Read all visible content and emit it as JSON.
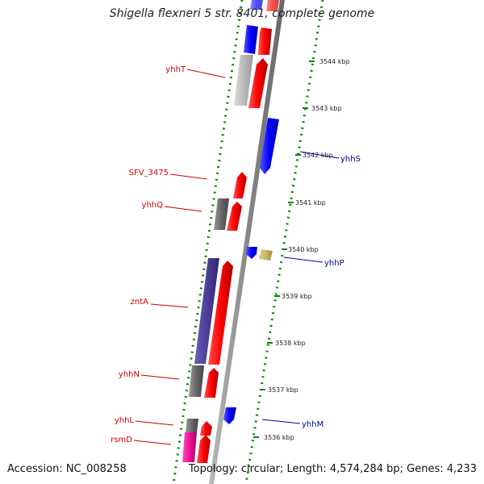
{
  "title": "Shigella flexneri 5 str. 8401, complete genome",
  "accession": "Accession: NC_008258",
  "topology": "Topology: circular; Length: 4,574,284 bp; Genes: 4,233",
  "ticks": [
    {
      "label": "3544 kbp"
    },
    {
      "label": "3543 kbp"
    },
    {
      "label": "3542 kbp"
    },
    {
      "label": "3541 kbp"
    },
    {
      "label": "3540 kbp"
    },
    {
      "label": "3539 kbp"
    },
    {
      "label": "3538 kbp"
    },
    {
      "label": "3537 kbp"
    },
    {
      "label": "3536 kbp"
    }
  ],
  "gene_labels": [
    {
      "name": "yhhT",
      "color": "#cc0000"
    },
    {
      "name": "SFV_3475",
      "color": "#cc0000"
    },
    {
      "name": "yhhQ",
      "color": "#cc0000"
    },
    {
      "name": "zntA",
      "color": "#cc0000"
    },
    {
      "name": "yhhN",
      "color": "#cc0000"
    },
    {
      "name": "yhhL",
      "color": "#cc0000"
    },
    {
      "name": "rsmD",
      "color": "#cc0000"
    },
    {
      "name": "yhhS",
      "color": "#000099"
    },
    {
      "name": "yhhP",
      "color": "#000099"
    },
    {
      "name": "yhhM",
      "color": "#000099"
    }
  ],
  "colors": {
    "forward_gene": "#ff0000",
    "reverse_gene": "#0000ff",
    "backbone": "#888888",
    "tick": "#008800",
    "cog_gray": "#666666",
    "cog_light": "#bbbbbb",
    "cog_purple": "#4b3f96",
    "cog_khaki": "#c8b96a",
    "cog_magenta": "#ee1199"
  }
}
